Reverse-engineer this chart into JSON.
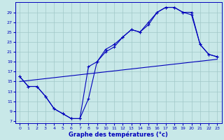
{
  "background_color": "#c8e8e8",
  "grid_color": "#a0c8c8",
  "line_color": "#0000bb",
  "xlabel": "Graphe des températures (°c)",
  "xlabel_color": "#0000bb",
  "tick_color": "#0000bb",
  "xlim": [
    -0.5,
    23.5
  ],
  "ylim": [
    6.5,
    31
  ],
  "yticks": [
    7,
    9,
    11,
    13,
    15,
    17,
    19,
    21,
    23,
    25,
    27,
    29
  ],
  "xticks": [
    0,
    1,
    2,
    3,
    4,
    5,
    6,
    7,
    8,
    9,
    10,
    11,
    12,
    13,
    14,
    15,
    16,
    17,
    18,
    19,
    20,
    21,
    22,
    23
  ],
  "line1_x": [
    0,
    1,
    2,
    3,
    4,
    5,
    6,
    7,
    8,
    9,
    10,
    11,
    12,
    13,
    14,
    15,
    16,
    17,
    18,
    19,
    20,
    21,
    22,
    23
  ],
  "line1_y": [
    16,
    14,
    14,
    12,
    9.5,
    8.5,
    7.5,
    7.5,
    11.5,
    19,
    21,
    22,
    24,
    25.5,
    25,
    26.5,
    29,
    30,
    30,
    29,
    28.5,
    22.5,
    20.5,
    20
  ],
  "line2_x": [
    0,
    1,
    2,
    3,
    4,
    5,
    6,
    7,
    8,
    9,
    10,
    11,
    12,
    13,
    14,
    15,
    16,
    17,
    18,
    19,
    20,
    21,
    22,
    23
  ],
  "line2_y": [
    16,
    14,
    14,
    12,
    9.5,
    8.5,
    7.5,
    7.5,
    18,
    19,
    21.5,
    22.5,
    24,
    25.5,
    25,
    27,
    29,
    30,
    30,
    29,
    29,
    22.5,
    20.5,
    20
  ],
  "line3_x": [
    0,
    23
  ],
  "line3_y": [
    15,
    19.5
  ]
}
